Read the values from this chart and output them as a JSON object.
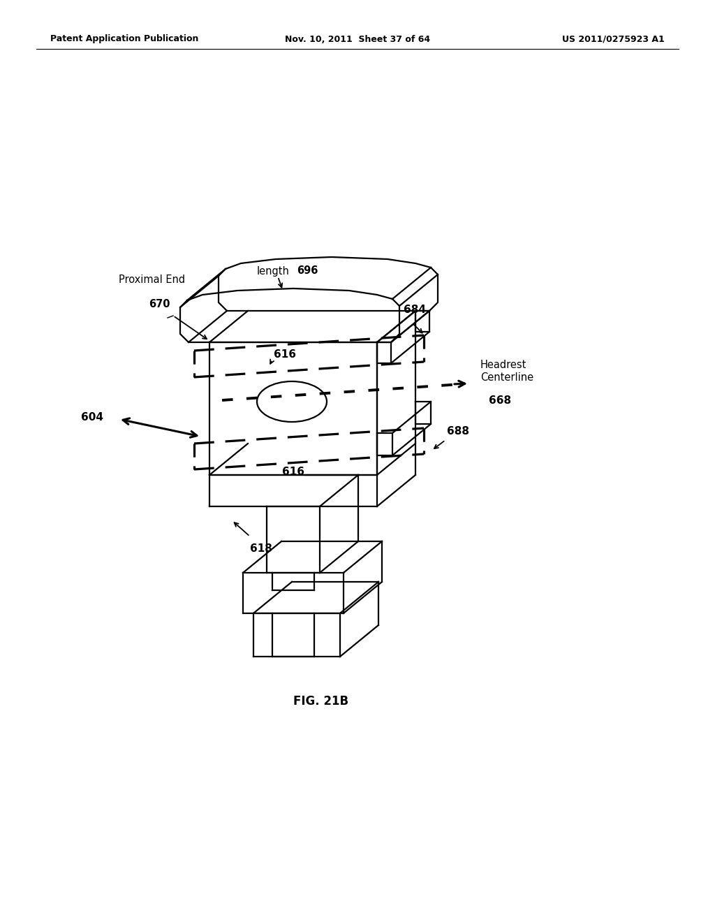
{
  "header_left": "Patent Application Publication",
  "header_center": "Nov. 10, 2011  Sheet 37 of 64",
  "header_right": "US 2011/0275923 A1",
  "fig_label": "FIG. 21B",
  "bg": "#ffffff",
  "lc": "#000000"
}
